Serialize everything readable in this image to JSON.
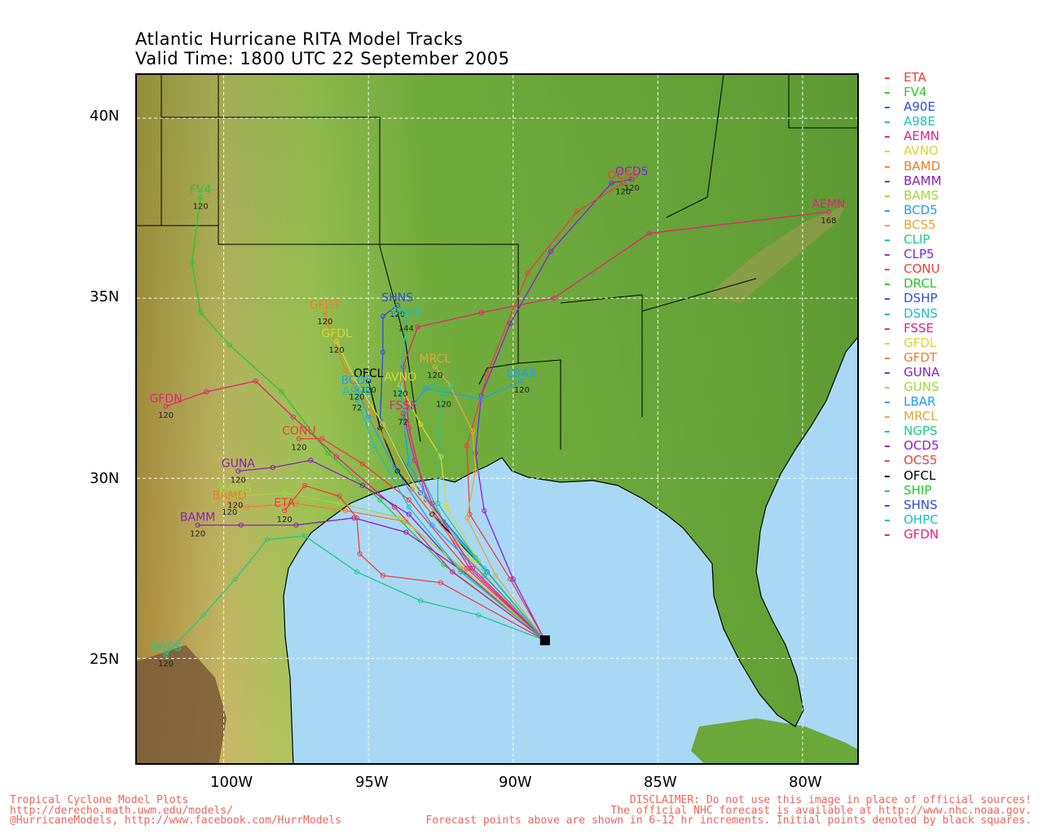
{
  "title_line1": "Atlantic Hurricane RITA Model Tracks",
  "title_line2": "Valid Time: 1800 UTC 22 September 2005",
  "lat_labels": [
    "40N",
    "35N",
    "30N",
    "25N"
  ],
  "lon_labels": [
    "100W",
    "95W",
    "90W",
    "85W",
    "80W"
  ],
  "map": {
    "projection": "lat-lon",
    "lon_range": [
      -103,
      -78
    ],
    "lat_range": [
      22,
      41.2
    ],
    "gridlines": true,
    "initial_position": {
      "lon": -88.9,
      "lat": 25.5
    }
  },
  "legend": [
    {
      "name": "ETA",
      "color": "#f03c3c"
    },
    {
      "name": "FV4",
      "color": "#26c926"
    },
    {
      "name": "A90E",
      "color": "#2b4de0"
    },
    {
      "name": "A98E",
      "color": "#1fbdbd"
    },
    {
      "name": "AEMN",
      "color": "#e6217a"
    },
    {
      "name": "AVNO",
      "color": "#d7d733"
    },
    {
      "name": "BAMD",
      "color": "#f07d28"
    },
    {
      "name": "BAMM",
      "color": "#8a1fb5"
    },
    {
      "name": "BAMS",
      "color": "#a6d63c"
    },
    {
      "name": "BCD5",
      "color": "#1e9ef0"
    },
    {
      "name": "BCS5",
      "color": "#e6a833"
    },
    {
      "name": "CLIP",
      "color": "#1fc98a"
    },
    {
      "name": "CLP5",
      "color": "#8a1fe0"
    },
    {
      "name": "CONU",
      "color": "#f03c3c"
    },
    {
      "name": "DRCL",
      "color": "#26c926"
    },
    {
      "name": "DSHP",
      "color": "#2b4de0"
    },
    {
      "name": "DSNS",
      "color": "#1fbdbd"
    },
    {
      "name": "FSSE",
      "color": "#e6217a"
    },
    {
      "name": "GFDL",
      "color": "#d7d733"
    },
    {
      "name": "GFDT",
      "color": "#f07d28"
    },
    {
      "name": "GUNA",
      "color": "#8a1fb5"
    },
    {
      "name": "GUNS",
      "color": "#a6d63c"
    },
    {
      "name": "LBAR",
      "color": "#1e9ef0"
    },
    {
      "name": "MRCL",
      "color": "#e6a833"
    },
    {
      "name": "NGPS",
      "color": "#1fc98a"
    },
    {
      "name": "OCD5",
      "color": "#8a1fe0"
    },
    {
      "name": "OCS5",
      "color": "#f03c3c"
    },
    {
      "name": "OFCL",
      "color": "#000000"
    },
    {
      "name": "SHIP",
      "color": "#26c926"
    },
    {
      "name": "SHNS",
      "color": "#2b4de0"
    },
    {
      "name": "OHPC",
      "color": "#1fbdbd"
    },
    {
      "name": "GFDN",
      "color": "#e6217a"
    }
  ],
  "tracks": [
    {
      "name": "FV4",
      "color": "#26c926",
      "end_hour": "120",
      "points": [
        [
          -88.9,
          25.5
        ],
        [
          -92.4,
          27.6
        ],
        [
          -94.6,
          29.4
        ],
        [
          -96.4,
          30.7
        ],
        [
          -98,
          32.4
        ],
        [
          -99.8,
          33.7
        ],
        [
          -100.8,
          34.6
        ],
        [
          -101.1,
          36
        ],
        [
          -100.8,
          37.8
        ]
      ]
    },
    {
      "name": "AEMN",
      "color": "#e6217a",
      "end_hour": "168",
      "points": [
        [
          -88.9,
          25.5
        ],
        [
          -91.5,
          27.5
        ],
        [
          -93,
          29.4
        ],
        [
          -93.6,
          31.4
        ],
        [
          -93.8,
          33.1
        ],
        [
          -93.3,
          34.2
        ],
        [
          -91.1,
          34.6
        ],
        [
          -88.6,
          35
        ],
        [
          -85.3,
          36.8
        ],
        [
          -79.1,
          37.4
        ]
      ]
    },
    {
      "name": "OCD5",
      "color": "#8a1fe0",
      "end_hour": "120",
      "points": [
        [
          -88.9,
          25.5
        ],
        [
          -90,
          27.2
        ],
        [
          -91,
          29.1
        ],
        [
          -91.3,
          30.7
        ],
        [
          -91.1,
          32.3
        ],
        [
          -90.1,
          34.3
        ],
        [
          -88.7,
          36.3
        ],
        [
          -86.6,
          38.2
        ],
        [
          -85.9,
          38.3
        ]
      ]
    },
    {
      "name": "OCS5",
      "color": "#f03c3c",
      "end_hour": "120",
      "points": [
        [
          -88.9,
          25.5
        ],
        [
          -90.1,
          27.2
        ],
        [
          -91.5,
          29
        ],
        [
          -91.6,
          30.9
        ],
        [
          -90.9,
          32.9
        ],
        [
          -89.5,
          35.7
        ],
        [
          -87.8,
          37.4
        ],
        [
          -86.2,
          38.2
        ]
      ]
    },
    {
      "name": "SHNS",
      "color": "#2b4de0",
      "end_hour": "120",
      "points": [
        [
          -88.9,
          25.5
        ],
        [
          -91.2,
          27.7
        ],
        [
          -93.2,
          29.6
        ],
        [
          -94.6,
          31.6
        ],
        [
          -94.5,
          33.5
        ],
        [
          -94.5,
          34.5
        ],
        [
          -94,
          34.8
        ]
      ]
    },
    {
      "name": "OFCL",
      "color": "#000000",
      "end_hour": "120",
      "points": [
        [
          -88.9,
          25.5
        ],
        [
          -90.9,
          27.4
        ],
        [
          -92.8,
          29
        ],
        [
          -94,
          30.2
        ],
        [
          -94.6,
          31.4
        ],
        [
          -95,
          32.7
        ]
      ]
    },
    {
      "name": "LBAR",
      "color": "#1e9ef0",
      "end_hour": "120",
      "points": [
        [
          -88.9,
          25.5
        ],
        [
          -90.9,
          27.4
        ],
        [
          -92.5,
          28.8
        ],
        [
          -93.6,
          30.4
        ],
        [
          -93.8,
          31.7
        ],
        [
          -93,
          32.5
        ],
        [
          -91.1,
          32.2
        ],
        [
          -89.7,
          32.7
        ]
      ]
    },
    {
      "name": "GFDN",
      "color": "#e6217a",
      "end_hour": "120",
      "points": [
        [
          -88.9,
          25.5
        ],
        [
          -92.1,
          27.4
        ],
        [
          -94.1,
          29.2
        ],
        [
          -96.1,
          30.6
        ],
        [
          -97.6,
          31.7
        ],
        [
          -98.9,
          32.7
        ],
        [
          -100.6,
          32.4
        ],
        [
          -102,
          32
        ]
      ]
    },
    {
      "name": "GUNA",
      "color": "#8a1fb5",
      "end_hour": "120",
      "points": [
        [
          -88.9,
          25.5
        ],
        [
          -91.8,
          27.4
        ],
        [
          -93.6,
          29
        ],
        [
          -95.2,
          29.8
        ],
        [
          -97,
          30.5
        ],
        [
          -98.3,
          30.3
        ],
        [
          -99.5,
          30.2
        ]
      ]
    },
    {
      "name": "BAMM",
      "color": "#8a1fb5",
      "end_hour": "120",
      "points": [
        [
          -88.9,
          25.5
        ],
        [
          -91.7,
          27.4
        ],
        [
          -93.7,
          28.5
        ],
        [
          -95.5,
          28.9
        ],
        [
          -97.5,
          28.7
        ],
        [
          -99.4,
          28.7
        ],
        [
          -100.9,
          28.7
        ]
      ]
    },
    {
      "name": "BAMD",
      "color": "#f07d28",
      "end_hour": "120",
      "points": [
        [
          -88.9,
          25.5
        ],
        [
          -91.8,
          27.5
        ],
        [
          -93.7,
          28.8
        ],
        [
          -95.8,
          29.1
        ],
        [
          -97.5,
          29.3
        ],
        [
          -99.2,
          29.2
        ],
        [
          -99.8,
          29.3
        ]
      ]
    },
    {
      "name": "BAMS",
      "color": "#a6d63c",
      "end_hour": "120",
      "points": [
        [
          -88.9,
          25.5
        ],
        [
          -91.9,
          27.6
        ],
        [
          -93.9,
          28.9
        ],
        [
          -96,
          29.3
        ],
        [
          -97.9,
          29.6
        ],
        [
          -99.6,
          29.5
        ]
      ]
    },
    {
      "name": "ETA",
      "color": "#f03c3c",
      "end_hour": "120",
      "points": [
        [
          -88.9,
          25.5
        ],
        [
          -92.5,
          27.1
        ],
        [
          -94.5,
          27.3
        ],
        [
          -95.3,
          27.9
        ],
        [
          -95.4,
          28.9
        ],
        [
          -96,
          29.5
        ],
        [
          -97.2,
          29.8
        ],
        [
          -97.9,
          29.1
        ]
      ]
    },
    {
      "name": "CONU",
      "color": "#f03c3c",
      "end_hour": "120",
      "points": [
        [
          -88.9,
          25.5
        ],
        [
          -91.6,
          27.5
        ],
        [
          -93.6,
          29.4
        ],
        [
          -95.2,
          30.4
        ],
        [
          -96.6,
          31.1
        ],
        [
          -97.4,
          31.1
        ]
      ]
    },
    {
      "name": "GFDT",
      "color": "#f07d28",
      "end_hour": "120",
      "points": [
        [
          -88.9,
          25.5
        ],
        [
          -91.6,
          27.8
        ],
        [
          -93.5,
          29.7
        ],
        [
          -94.9,
          31.8
        ],
        [
          -95.8,
          33
        ],
        [
          -96.4,
          34.3
        ],
        [
          -96.5,
          34.6
        ]
      ]
    },
    {
      "name": "GFDL",
      "color": "#d7d733",
      "end_hour": "120",
      "points": [
        [
          -88.9,
          25.5
        ],
        [
          -91.4,
          27.7
        ],
        [
          -93.4,
          29.8
        ],
        [
          -94.5,
          31.5
        ],
        [
          -95.5,
          32.8
        ],
        [
          -96.1,
          33.8
        ]
      ]
    },
    {
      "name": "NGPS",
      "color": "#1fc98a",
      "end_hour": "120",
      "points": [
        [
          -88.9,
          25.5
        ],
        [
          -91.2,
          26.2
        ],
        [
          -93.2,
          26.6
        ],
        [
          -95.4,
          27.4
        ],
        [
          -97.2,
          28.4
        ],
        [
          -98.5,
          28.3
        ],
        [
          -99.6,
          27.2
        ],
        [
          -100.7,
          26.2
        ],
        [
          -102,
          25.1
        ]
      ]
    },
    {
      "name": "MRCL",
      "color": "#e6a833",
      "end_hour": "120",
      "points": [
        [
          -88.9,
          25.5
        ],
        [
          -90.6,
          27.3
        ],
        [
          -91.6,
          28.9
        ],
        [
          -91.3,
          30.2
        ],
        [
          -91.4,
          31.3
        ],
        [
          -92.2,
          32.6
        ],
        [
          -92.7,
          33.1
        ]
      ]
    },
    {
      "name": "AVNO",
      "color": "#d7d733",
      "end_hour": "120",
      "points": [
        [
          -88.9,
          25.5
        ],
        [
          -91.2,
          27.7
        ],
        [
          -92.3,
          29.2
        ],
        [
          -92.5,
          30.6
        ],
        [
          -93.2,
          31.5
        ],
        [
          -93.9,
          32.6
        ]
      ]
    },
    {
      "name": "CLIP",
      "color": "#1fc98a",
      "end_hour": "120",
      "points": [
        [
          -88.9,
          25.5
        ],
        [
          -91.3,
          27.8
        ],
        [
          -92.6,
          29.3
        ],
        [
          -92.6,
          31.3
        ],
        [
          -92.4,
          32.3
        ]
      ]
    },
    {
      "name": "DSNS",
      "color": "#1fbdbd",
      "end_hour": "144",
      "points": [
        [
          -88.9,
          25.5
        ],
        [
          -91,
          27.5
        ],
        [
          -92.4,
          28.8
        ],
        [
          -93.5,
          30.6
        ],
        [
          -93.9,
          32.4
        ],
        [
          -93.7,
          34.4
        ]
      ]
    },
    {
      "name": "FSSE",
      "color": "#e6217a",
      "end_hour": "72",
      "points": [
        [
          -88.9,
          25.5
        ],
        [
          -91.4,
          27.5
        ],
        [
          -92.8,
          29.3
        ],
        [
          -93.4,
          30.5
        ],
        [
          -93.8,
          31.8
        ]
      ]
    },
    {
      "name": "A98E",
      "color": "#1fbdbd",
      "end_hour": "72",
      "points": [
        [
          -88.9,
          25.5
        ],
        [
          -91.8,
          27.4
        ],
        [
          -93.6,
          29.2
        ],
        [
          -94.8,
          30.9
        ],
        [
          -95.4,
          32.2
        ]
      ]
    },
    {
      "name": "BCD5",
      "color": "#1e9ef0",
      "end_hour": "120",
      "points": [
        [
          -88.9,
          25.5
        ],
        [
          -91,
          27.3
        ],
        [
          -92.8,
          28.7
        ],
        [
          -94.1,
          30.3
        ],
        [
          -95,
          31.7
        ],
        [
          -95.4,
          32.5
        ]
      ]
    }
  ]
}
